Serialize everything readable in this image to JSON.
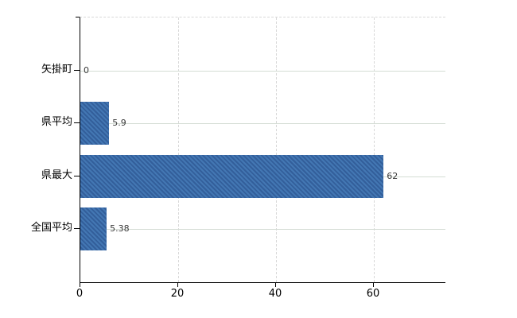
{
  "chart_data": {
    "type": "bar",
    "orientation": "horizontal",
    "title": "",
    "xlabel": "",
    "ylabel": "",
    "categories": [
      "矢掛町",
      "県平均",
      "県最大",
      "全国平均"
    ],
    "values": [
      0,
      5.9,
      62,
      5.38
    ],
    "value_labels": [
      "0",
      "5.9",
      "62",
      "5.38"
    ],
    "xticks": [
      0,
      20,
      40,
      60
    ],
    "xlim": [
      0,
      74.6
    ],
    "grid": {
      "horizontal": "solid",
      "vertical": "dashed",
      "top_border": "dashed"
    },
    "legend_position": "none",
    "bar_color": "#3b6ca7"
  },
  "colors": {
    "background": "#ffffff",
    "bar": "#3b6ca7",
    "axis": "#000000",
    "horizontal_gridline": "#d5ddd5",
    "vertical_gridline": "#d8d8d8",
    "top_border": "#d9d9d9",
    "category_text": "#000000",
    "value_text": "#3a3a3a"
  }
}
